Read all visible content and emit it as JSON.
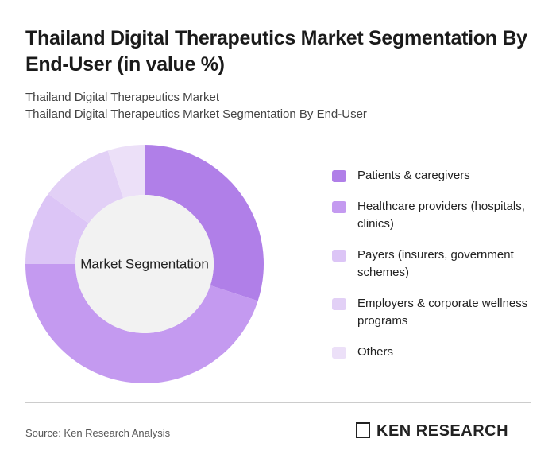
{
  "chart_data": {
    "type": "donut",
    "title": "Thailand Digital Therapeutics Market Segmentation By End-User (in value %)",
    "subtitles": [
      "Thailand Digital Therapeutics Market",
      "Thailand Digital Therapeutics Market Segmentation By End-User"
    ],
    "center_label": "Market Segmentation",
    "categories": [
      "Patients & caregivers",
      "Healthcare providers (hospitals, clinics)",
      "Payers (insurers, government schemes)",
      "Employers & corporate wellness programs",
      "Others"
    ],
    "values": [
      30,
      45,
      10,
      10,
      5
    ],
    "colors": [
      "#b07fe8",
      "#c49af0",
      "#dcc5f6",
      "#e2d0f6",
      "#ece0f8"
    ],
    "source": "Source: Ken Research Analysis",
    "logo": "KEN RESEARCH"
  }
}
